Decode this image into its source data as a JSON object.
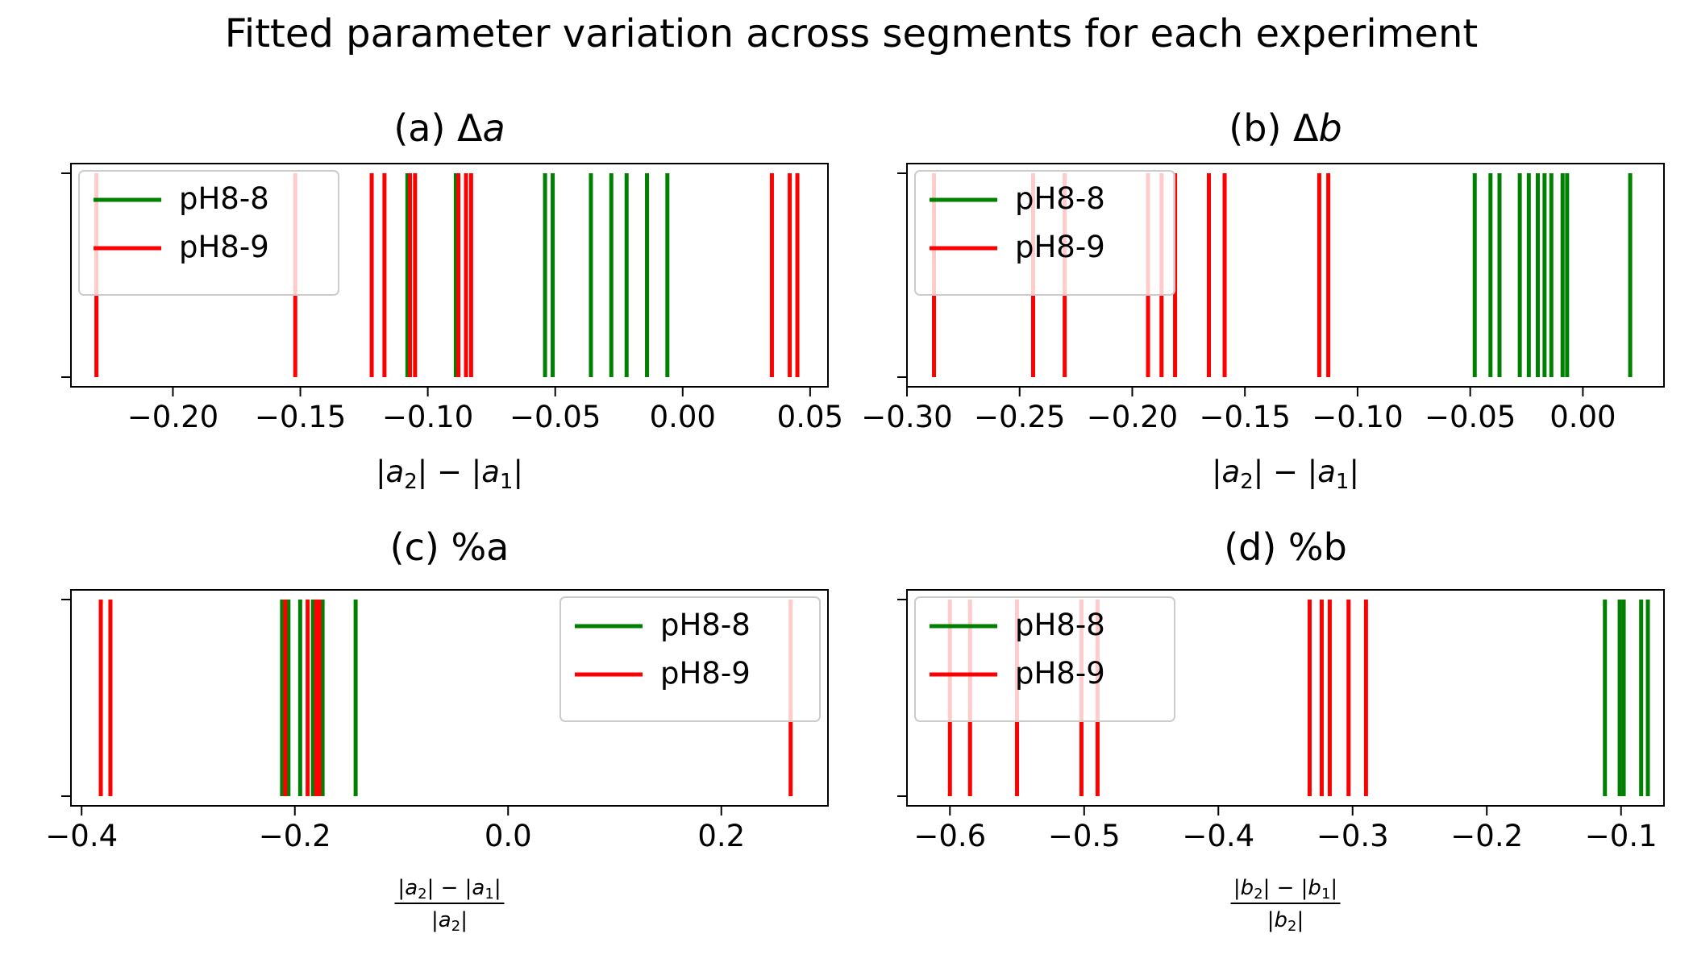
{
  "figure": {
    "title": "Fitted parameter variation across segments for each experiment"
  },
  "chart_data": [
    {
      "type": "eventplot",
      "title_prefix": "(a) Δ",
      "title_var": "a",
      "xlabel": {
        "kind": "diff",
        "v": "a"
      },
      "xlim": [
        -0.24,
        0.057
      ],
      "xticks": [
        -0.2,
        -0.15,
        -0.1,
        -0.05,
        0.0,
        0.05
      ],
      "tick_labels": [
        "−0.20",
        "−0.15",
        "−0.10",
        "−0.05",
        "0.00",
        "0.05"
      ],
      "legend": {
        "position": "upper-left"
      },
      "series": [
        {
          "name": "pH8-8",
          "color": "#008000",
          "values": [
            -0.108,
            -0.089,
            -0.054,
            -0.051,
            -0.036,
            -0.028,
            -0.022,
            -0.014,
            -0.006
          ]
        },
        {
          "name": "pH8-9",
          "color": "#ff0000",
          "values": [
            -0.23,
            -0.152,
            -0.122,
            -0.117,
            -0.107,
            -0.105,
            -0.088,
            -0.085,
            -0.083,
            0.035,
            0.042,
            0.045
          ]
        }
      ]
    },
    {
      "type": "eventplot",
      "title_prefix": "(b) Δ",
      "title_var": "b",
      "xlabel": {
        "kind": "diff",
        "v": "a"
      },
      "xlim": [
        -0.3,
        0.036
      ],
      "xticks": [
        -0.3,
        -0.25,
        -0.2,
        -0.15,
        -0.1,
        -0.05,
        0.0
      ],
      "tick_labels": [
        "−0.30",
        "−0.25",
        "−0.20",
        "−0.15",
        "−0.10",
        "−0.05",
        "0.00"
      ],
      "legend": {
        "position": "upper-left"
      },
      "series": [
        {
          "name": "pH8-8",
          "color": "#008000",
          "values": [
            -0.048,
            -0.041,
            -0.037,
            -0.028,
            -0.024,
            -0.02,
            -0.017,
            -0.014,
            -0.009,
            -0.007,
            0.021
          ]
        },
        {
          "name": "pH8-9",
          "color": "#ff0000",
          "values": [
            -0.288,
            -0.244,
            -0.23,
            -0.193,
            -0.187,
            -0.181,
            -0.166,
            -0.159,
            -0.117,
            -0.113
          ]
        }
      ]
    },
    {
      "type": "eventplot",
      "title_prefix": "(c) %a",
      "title_var": "",
      "xlabel": {
        "kind": "frac",
        "v": "a"
      },
      "xlim": [
        -0.41,
        0.3
      ],
      "xticks": [
        -0.4,
        -0.2,
        0.0,
        0.2
      ],
      "tick_labels": [
        "−0.4",
        "−0.2",
        "0.0",
        "0.2"
      ],
      "legend": {
        "position": "upper-right"
      },
      "series": [
        {
          "name": "pH8-8",
          "color": "#008000",
          "values": [
            -0.212,
            -0.206,
            -0.195,
            -0.183,
            -0.178,
            -0.174,
            -0.143
          ]
        },
        {
          "name": "pH8-9",
          "color": "#ff0000",
          "values": [
            -0.382,
            -0.373,
            -0.209,
            -0.188,
            -0.18,
            -0.177,
            0.265
          ]
        }
      ]
    },
    {
      "type": "eventplot",
      "title_prefix": "(d) %b",
      "title_var": "",
      "xlabel": {
        "kind": "frac",
        "v": "b"
      },
      "xlim": [
        -0.632,
        -0.068
      ],
      "xticks": [
        -0.6,
        -0.5,
        -0.4,
        -0.3,
        -0.2,
        -0.1
      ],
      "tick_labels": [
        "−0.6",
        "−0.5",
        "−0.4",
        "−0.3",
        "−0.2",
        "−0.1"
      ],
      "legend": {
        "position": "upper-left"
      },
      "series": [
        {
          "name": "pH8-8",
          "color": "#008000",
          "values": [
            -0.112,
            -0.101,
            -0.098,
            -0.085,
            -0.08
          ]
        },
        {
          "name": "pH8-9",
          "color": "#ff0000",
          "values": [
            -0.6,
            -0.585,
            -0.55,
            -0.502,
            -0.49,
            -0.332,
            -0.323,
            -0.317,
            -0.303,
            -0.29
          ]
        }
      ]
    }
  ]
}
